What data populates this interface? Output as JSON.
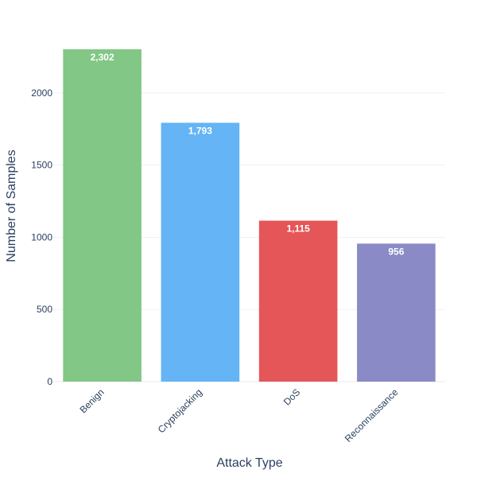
{
  "chart_data": {
    "type": "bar",
    "title": "",
    "xlabel": "Attack Type",
    "ylabel": "Number of Samples",
    "categories": [
      "Benign",
      "Cryptojacking",
      "DoS",
      "Reconnaissance"
    ],
    "values": [
      2302,
      1793,
      1115,
      956
    ],
    "data_labels": [
      "2,302",
      "1,793",
      "1,115",
      "956"
    ],
    "colors": [
      "#81c784",
      "#64b5f6",
      "#e57373",
      "#8e8cc7"
    ],
    "bar_colors_exact": [
      "#82c785",
      "#64b4f6",
      "#e55658",
      "#8a8ac6"
    ],
    "ylim": [
      0,
      2302
    ],
    "yticks": [
      0,
      500,
      1000,
      1500,
      2000
    ],
    "ytick_labels": [
      "0",
      "500",
      "1000",
      "1500",
      "2000"
    ],
    "grid": true,
    "legend": "none"
  }
}
